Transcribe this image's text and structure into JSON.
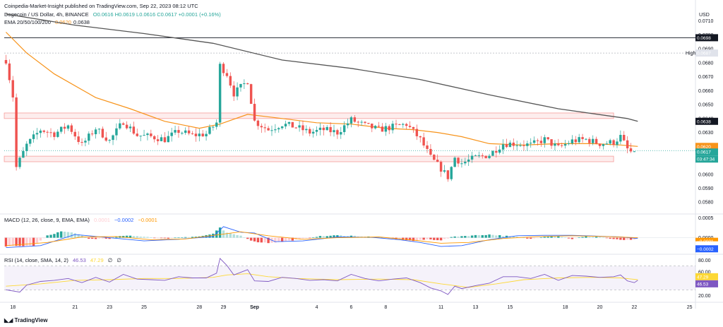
{
  "header": {
    "published": "Coinpedia-Market-Insight published on TradingView.com, Sep 22, 2023 08:12 UTC",
    "symbol": "Dogecoin / US Dollar, 4h, BINANCE",
    "ohlc": "O0.0616 H0.0619 L0.0616 C0.0617 +0.0001 (+0.16%)",
    "ohlc_color": "#26a69a",
    "ema_label": "EMA 20/50/100/200",
    "ema_value_orange": "0.0620",
    "ema_value_dark": "0.0638",
    "currency": "USD"
  },
  "indicators": {
    "macd_label": "MACD (12, 26, close, 9, EMA, EMA)",
    "macd_v1": "0.0001",
    "macd_v2": "−0.0002",
    "macd_v3": "−0.0001",
    "rsi_label": "RSI (14, close, SMA, 14, 2)",
    "rsi_v1": "46.53",
    "rsi_v2": "47.29",
    "rsi_v3": "∅",
    "rsi_v4": "∅"
  },
  "footer": {
    "brand": "TradingView"
  },
  "colors": {
    "up": "#26a69a",
    "down": "#ef5350",
    "ema_orange": "#f7931a",
    "ema_dark": "#555555",
    "macd_pos_strong": "#26a69a",
    "macd_pos_weak": "#b2dfdb",
    "macd_neg_strong": "#ef5350",
    "macd_neg_weak": "#ffcdd2",
    "macd_line": "#2962ff",
    "signal_line": "#ff9800",
    "rsi_line": "#7e57c2",
    "rsi_ma": "#fdd835",
    "zone": "#ef5350"
  },
  "chart_data": {
    "type": "candlestick",
    "pair": "DOGE/USD",
    "timeframe": "4h",
    "price_axis_ticks": [
      0.071,
      0.07,
      0.069,
      0.068,
      0.067,
      0.066,
      0.065,
      0.064,
      0.063,
      0.062,
      0.061,
      0.06,
      0.059,
      0.058
    ],
    "price_tick_labels": [
      "0.0710",
      "0.0700",
      "0.0690",
      "0.0680",
      "0.0670",
      "0.0660",
      "0.0650",
      "0.0640",
      "0.0630",
      "0.0620",
      "0.0610",
      "0.0600",
      "0.0590",
      "0.0580"
    ],
    "ylim": [
      0.0572,
      0.072
    ],
    "x_labels": [
      "18",
      "21",
      "23",
      "25",
      "28",
      "29",
      "Sep",
      "4",
      "6",
      "8",
      "11",
      "13",
      "15",
      "18",
      "20",
      "22",
      "25"
    ],
    "x_label_index": [
      2,
      20,
      30,
      40,
      56,
      63,
      72,
      90,
      100,
      110,
      126,
      136,
      146,
      162,
      172,
      182,
      198
    ],
    "bar_count": 183,
    "x_span_bars": 200,
    "resistance_line": 0.0698,
    "resistance_label": "0.0698",
    "high_value": 0.0687,
    "high_text": "High",
    "high_label": "0.0687",
    "last_price": 0.0617,
    "last_price_label": "0.0617",
    "countdown": "03:47:34",
    "ema_orange_last": 0.062,
    "ema_orange_label": "0.0620",
    "ema_dark_last": 0.0638,
    "ema_dark_label": "0.0638",
    "supply_zone": [
      0.064,
      0.0644
    ],
    "demand_zone": [
      0.0609,
      0.0613
    ],
    "ema_dark_path": [
      [
        0,
        0.0715
      ],
      [
        20,
        0.0707
      ],
      [
        40,
        0.0701
      ],
      [
        60,
        0.0694
      ],
      [
        80,
        0.0682
      ],
      [
        100,
        0.0676
      ],
      [
        120,
        0.0668
      ],
      [
        140,
        0.0657
      ],
      [
        160,
        0.0647
      ],
      [
        180,
        0.064
      ],
      [
        183,
        0.0638
      ]
    ],
    "ema_orange_path": [
      [
        0,
        0.0702
      ],
      [
        6,
        0.0687
      ],
      [
        14,
        0.0672
      ],
      [
        26,
        0.0655
      ],
      [
        36,
        0.0647
      ],
      [
        46,
        0.0638
      ],
      [
        56,
        0.0633
      ],
      [
        62,
        0.0636
      ],
      [
        70,
        0.0643
      ],
      [
        80,
        0.064
      ],
      [
        90,
        0.0637
      ],
      [
        100,
        0.0636
      ],
      [
        110,
        0.0633
      ],
      [
        118,
        0.0632
      ],
      [
        125,
        0.063
      ],
      [
        132,
        0.0627
      ],
      [
        140,
        0.0622
      ],
      [
        150,
        0.0621
      ],
      [
        160,
        0.0622
      ],
      [
        170,
        0.0622
      ],
      [
        178,
        0.0621
      ],
      [
        183,
        0.062
      ]
    ],
    "price_path": [
      [
        0,
        0.0682
      ],
      [
        2,
        0.0656
      ],
      [
        3,
        0.0605
      ],
      [
        6,
        0.0621
      ],
      [
        10,
        0.0632
      ],
      [
        14,
        0.0629
      ],
      [
        18,
        0.0635
      ],
      [
        22,
        0.0621
      ],
      [
        26,
        0.0633
      ],
      [
        30,
        0.0624
      ],
      [
        34,
        0.0638
      ],
      [
        38,
        0.0628
      ],
      [
        42,
        0.0627
      ],
      [
        46,
        0.0625
      ],
      [
        50,
        0.0631
      ],
      [
        54,
        0.0628
      ],
      [
        58,
        0.0629
      ],
      [
        61,
        0.0637
      ],
      [
        62,
        0.0678
      ],
      [
        64,
        0.0672
      ],
      [
        66,
        0.0658
      ],
      [
        70,
        0.0667
      ],
      [
        72,
        0.0638
      ],
      [
        76,
        0.0632
      ],
      [
        80,
        0.0636
      ],
      [
        84,
        0.0634
      ],
      [
        88,
        0.063
      ],
      [
        92,
        0.0632
      ],
      [
        96,
        0.063
      ],
      [
        100,
        0.0639
      ],
      [
        104,
        0.0635
      ],
      [
        108,
        0.0632
      ],
      [
        112,
        0.0634
      ],
      [
        116,
        0.0636
      ],
      [
        120,
        0.0625
      ],
      [
        123,
        0.0612
      ],
      [
        126,
        0.0604
      ],
      [
        128,
        0.0598
      ],
      [
        130,
        0.0612
      ],
      [
        132,
        0.0608
      ],
      [
        136,
        0.0612
      ],
      [
        140,
        0.0614
      ],
      [
        144,
        0.0622
      ],
      [
        148,
        0.0622
      ],
      [
        152,
        0.0621
      ],
      [
        156,
        0.0625
      ],
      [
        160,
        0.0619
      ],
      [
        164,
        0.0624
      ],
      [
        168,
        0.0625
      ],
      [
        172,
        0.0622
      ],
      [
        176,
        0.0623
      ],
      [
        178,
        0.0627
      ],
      [
        180,
        0.0618
      ],
      [
        182,
        0.0614
      ],
      [
        183,
        0.0617
      ]
    ],
    "series": [
      {
        "name": "EMA 20/50/100/200",
        "value_labels": [
          "0.0620",
          "0.0638"
        ]
      },
      {
        "name": "MACD (12, 26, close, 9, EMA, EMA)",
        "value_labels": [
          "0.0001",
          "−0.0002",
          "−0.0001"
        ]
      },
      {
        "name": "RSI (14, close, SMA, 14, 2)",
        "value_labels": [
          "46.53",
          "47.29"
        ]
      }
    ],
    "macd": {
      "axis_ticks": [
        0.0005,
        0.0
      ],
      "axis_tick_labels": [
        "0.0005",
        "0.0000"
      ],
      "ylim": [
        -0.0004,
        0.0006
      ],
      "tags": [
        "−0.0001",
        "−0.0001",
        "−0.0002"
      ],
      "hist_path": [
        [
          0,
          -0.00022
        ],
        [
          8,
          -0.0002
        ],
        [
          12,
          5e-05
        ],
        [
          16,
          0.00016
        ],
        [
          20,
          0.00012
        ],
        [
          24,
          -3e-05
        ],
        [
          30,
          -2e-05
        ],
        [
          34,
          5e-05
        ],
        [
          40,
          3e-05
        ],
        [
          46,
          -2e-05
        ],
        [
          52,
          2e-05
        ],
        [
          56,
          3e-05
        ],
        [
          60,
          0.0001
        ],
        [
          62,
          0.00025
        ],
        [
          64,
          0.00012
        ],
        [
          68,
          5e-05
        ],
        [
          72,
          -0.0001
        ],
        [
          76,
          -0.00013
        ],
        [
          80,
          -0.0001
        ],
        [
          84,
          -5e-05
        ],
        [
          90,
          3e-05
        ],
        [
          96,
          6e-05
        ],
        [
          100,
          5e-05
        ],
        [
          106,
          2e-05
        ],
        [
          110,
          0.0
        ],
        [
          114,
          -4e-05
        ],
        [
          118,
          -8e-05
        ],
        [
          122,
          -4e-05
        ],
        [
          126,
          -6e-05
        ],
        [
          130,
          3e-05
        ],
        [
          136,
          6e-05
        ],
        [
          140,
          8e-05
        ],
        [
          144,
          5e-05
        ],
        [
          148,
          2e-05
        ],
        [
          152,
          -3e-05
        ],
        [
          156,
          3e-05
        ],
        [
          160,
          4e-05
        ],
        [
          164,
          -3e-05
        ],
        [
          168,
          3e-05
        ],
        [
          172,
          2e-05
        ],
        [
          176,
          -4e-05
        ],
        [
          180,
          -6e-05
        ],
        [
          183,
          -5e-05
        ]
      ],
      "macd_path": [
        [
          0,
          -0.00025
        ],
        [
          10,
          -0.0002
        ],
        [
          20,
          8e-05
        ],
        [
          30,
          0.0
        ],
        [
          40,
          -8e-05
        ],
        [
          50,
          -4e-05
        ],
        [
          60,
          3e-05
        ],
        [
          63,
          0.00028
        ],
        [
          68,
          0.00014
        ],
        [
          72,
          0.00012
        ],
        [
          78,
          -0.0001
        ],
        [
          86,
          -8e-05
        ],
        [
          96,
          2e-05
        ],
        [
          106,
          1e-05
        ],
        [
          114,
          -5e-05
        ],
        [
          120,
          -0.00012
        ],
        [
          126,
          -0.00022
        ],
        [
          132,
          -0.0002
        ],
        [
          140,
          -5e-05
        ],
        [
          148,
          5e-05
        ],
        [
          156,
          6e-05
        ],
        [
          164,
          6e-05
        ],
        [
          172,
          4e-05
        ],
        [
          178,
          2e-05
        ],
        [
          183,
          -2e-05
        ]
      ],
      "signal_path": [
        [
          0,
          -0.0002
        ],
        [
          12,
          -0.00012
        ],
        [
          22,
          2e-05
        ],
        [
          32,
          3e-05
        ],
        [
          42,
          -5e-05
        ],
        [
          52,
          -3e-05
        ],
        [
          62,
          8e-05
        ],
        [
          68,
          0.00015
        ],
        [
          76,
          5e-05
        ],
        [
          86,
          -4e-05
        ],
        [
          96,
          0.0
        ],
        [
          108,
          2e-05
        ],
        [
          118,
          -6e-05
        ],
        [
          126,
          -0.00014
        ],
        [
          134,
          -0.00012
        ],
        [
          144,
          -2e-05
        ],
        [
          154,
          3e-05
        ],
        [
          164,
          5e-05
        ],
        [
          174,
          3e-05
        ],
        [
          183,
          0.0
        ]
      ]
    },
    "rsi": {
      "axis_ticks": [
        80,
        60,
        20
      ],
      "axis_tick_labels": [
        "80.00",
        "60.00",
        "20.00"
      ],
      "ylim": [
        10,
        90
      ],
      "band": [
        30,
        70
      ],
      "tags": [
        "47.29",
        "46.53"
      ],
      "rsi_path": [
        [
          0,
          30
        ],
        [
          4,
          26
        ],
        [
          6,
          38
        ],
        [
          10,
          44
        ],
        [
          14,
          46
        ],
        [
          18,
          49
        ],
        [
          22,
          42
        ],
        [
          26,
          51
        ],
        [
          30,
          43
        ],
        [
          34,
          56
        ],
        [
          38,
          48
        ],
        [
          42,
          47
        ],
        [
          46,
          46
        ],
        [
          50,
          52
        ],
        [
          54,
          50
        ],
        [
          58,
          50
        ],
        [
          61,
          58
        ],
        [
          62,
          83
        ],
        [
          64,
          71
        ],
        [
          66,
          55
        ],
        [
          70,
          64
        ],
        [
          72,
          45
        ],
        [
          76,
          44
        ],
        [
          80,
          51
        ],
        [
          84,
          49
        ],
        [
          88,
          46
        ],
        [
          92,
          47
        ],
        [
          96,
          45
        ],
        [
          100,
          56
        ],
        [
          104,
          49
        ],
        [
          108,
          45
        ],
        [
          112,
          48
        ],
        [
          116,
          50
        ],
        [
          120,
          42
        ],
        [
          123,
          33
        ],
        [
          126,
          28
        ],
        [
          128,
          22
        ],
        [
          130,
          36
        ],
        [
          132,
          32
        ],
        [
          136,
          37
        ],
        [
          140,
          41
        ],
        [
          144,
          52
        ],
        [
          148,
          52
        ],
        [
          152,
          49
        ],
        [
          156,
          56
        ],
        [
          160,
          46
        ],
        [
          164,
          54
        ],
        [
          168,
          53
        ],
        [
          172,
          51
        ],
        [
          176,
          52
        ],
        [
          178,
          55
        ],
        [
          180,
          45
        ],
        [
          182,
          42
        ],
        [
          183,
          46
        ]
      ],
      "rsi_ma_path": [
        [
          0,
          36
        ],
        [
          10,
          40
        ],
        [
          20,
          46
        ],
        [
          30,
          47
        ],
        [
          40,
          49
        ],
        [
          50,
          49
        ],
        [
          60,
          51
        ],
        [
          64,
          55
        ],
        [
          70,
          57
        ],
        [
          76,
          52
        ],
        [
          84,
          49
        ],
        [
          96,
          47
        ],
        [
          108,
          48
        ],
        [
          118,
          47
        ],
        [
          126,
          40
        ],
        [
          134,
          34
        ],
        [
          142,
          40
        ],
        [
          150,
          47
        ],
        [
          160,
          50
        ],
        [
          170,
          51
        ],
        [
          178,
          50
        ],
        [
          183,
          47
        ]
      ]
    }
  }
}
